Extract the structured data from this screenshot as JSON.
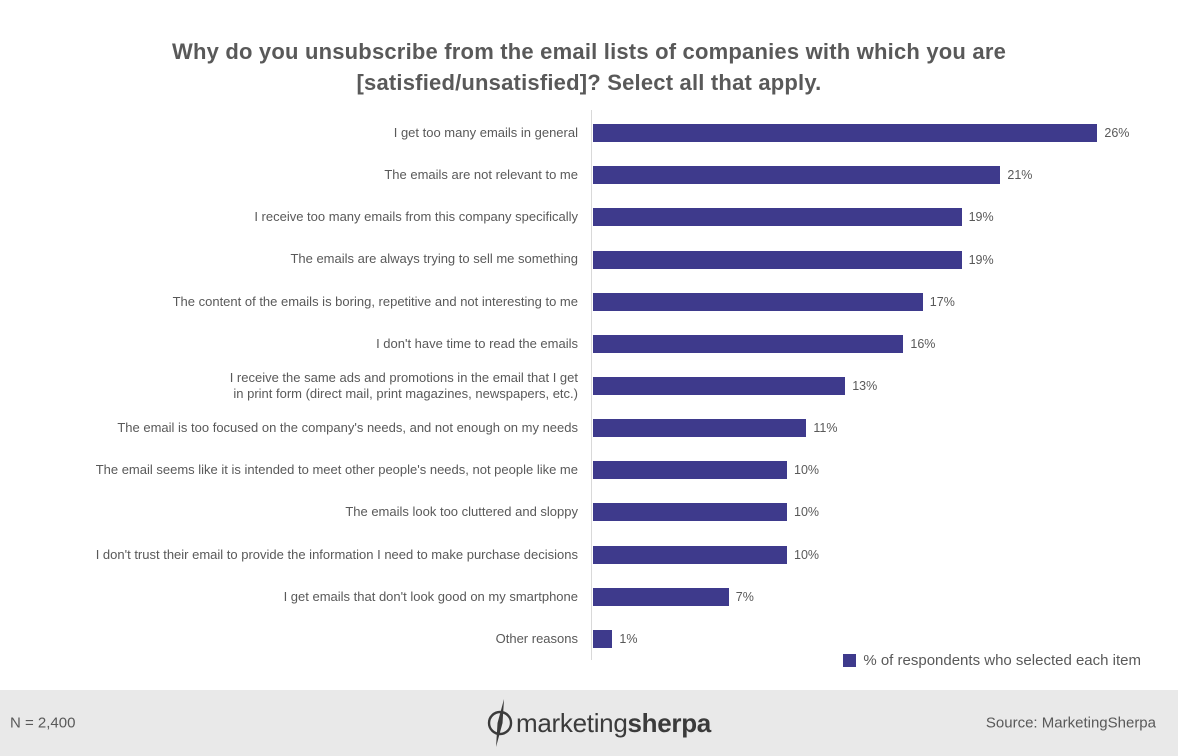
{
  "chart_data": {
    "type": "bar",
    "orientation": "horizontal",
    "title": "Why do you unsubscribe from the email lists of companies with which you are [satisfied/unsatisfied]? Select all that apply.",
    "categories": [
      "I get too many emails in general",
      "The emails are not relevant to me",
      "I receive too many emails from this company specifically",
      "The emails are always trying to sell me something",
      "The content of the emails is boring, repetitive and not interesting to me",
      "I don't have time to read the emails",
      "I receive the same ads and promotions in the email that I get\nin print form (direct mail, print magazines, newspapers, etc.)",
      "The email is too focused on the company's needs, and not enough on my needs",
      "The email seems like it is intended to meet other people's needs, not people like me",
      "The emails look too cluttered and sloppy",
      "I don't trust their email to provide the information I need to make purchase decisions",
      "I get emails that don't look good on my smartphone",
      "Other reasons"
    ],
    "values": [
      26,
      21,
      19,
      19,
      17,
      16,
      13,
      11,
      10,
      10,
      10,
      7,
      1
    ],
    "value_labels": [
      "26%",
      "21%",
      "19%",
      "19%",
      "17%",
      "16%",
      "13%",
      "11%",
      "10%",
      "10%",
      "10%",
      "7%",
      "1%"
    ],
    "unit": "%",
    "xlim": [
      0,
      28
    ],
    "grid": false,
    "legend": [
      "% of respondents who selected each item"
    ],
    "legend_position": "bottom-right",
    "bar_color": "#3e3a8c"
  },
  "legend": {
    "label": "% of respondents who selected each item"
  },
  "footer": {
    "sample_size": "N = 2,400",
    "source": "Source: MarketingSherpa",
    "logo": {
      "icon": "compass-icon",
      "part1": "marketing",
      "part2": "sherpa"
    }
  },
  "colors": {
    "bar": "#3e3a8c",
    "text": "#595959",
    "axis_line": "#d9d9d9",
    "footer_bg": "#e9e9e9",
    "logo": "#3b3b3b"
  }
}
